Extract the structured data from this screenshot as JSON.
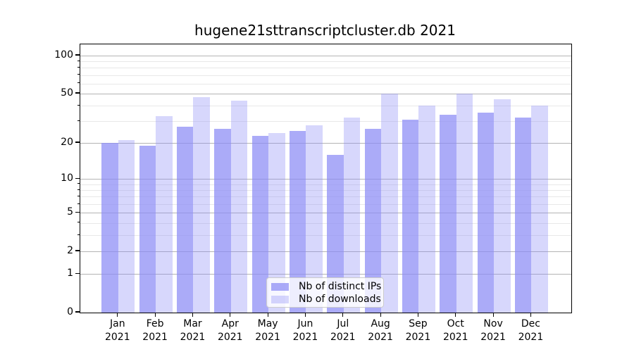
{
  "chart_data": {
    "type": "bar",
    "title": "hugene21sttranscriptcluster.db 2021",
    "categories": [
      "Jan 2021",
      "Feb 2021",
      "Mar 2021",
      "Apr 2021",
      "May 2021",
      "Jun 2021",
      "Jul 2021",
      "Aug 2021",
      "Sep 2021",
      "Oct 2021",
      "Nov 2021",
      "Dec 2021"
    ],
    "series": [
      {
        "name": "Nb of distinct IPs",
        "color": "rgba(138,138,245,0.72)",
        "values": [
          20,
          19,
          27,
          26,
          23,
          25,
          16,
          26,
          31,
          34,
          35,
          32
        ]
      },
      {
        "name": "Nb of downloads",
        "color": "rgba(138,138,245,0.34)",
        "values": [
          21,
          33,
          47,
          44,
          24,
          28,
          32,
          50,
          40,
          50,
          45,
          40
        ]
      }
    ],
    "xlabel": "",
    "ylabel": "",
    "y_scale": "log(value+1)",
    "y_ticks_major": [
      100,
      50,
      20,
      10,
      5,
      2,
      1,
      0
    ],
    "y_ticks_minor": [
      90,
      80,
      70,
      60,
      40,
      30,
      9,
      8,
      7,
      6,
      4,
      3
    ],
    "ylim": [
      0,
      123
    ],
    "grid": true,
    "legend_position": "lower center"
  },
  "colors": {
    "major_grid": "#b4b4b4",
    "minor_grid": "#e8e8e8",
    "axis": "#000000",
    "background": "#ffffff"
  }
}
